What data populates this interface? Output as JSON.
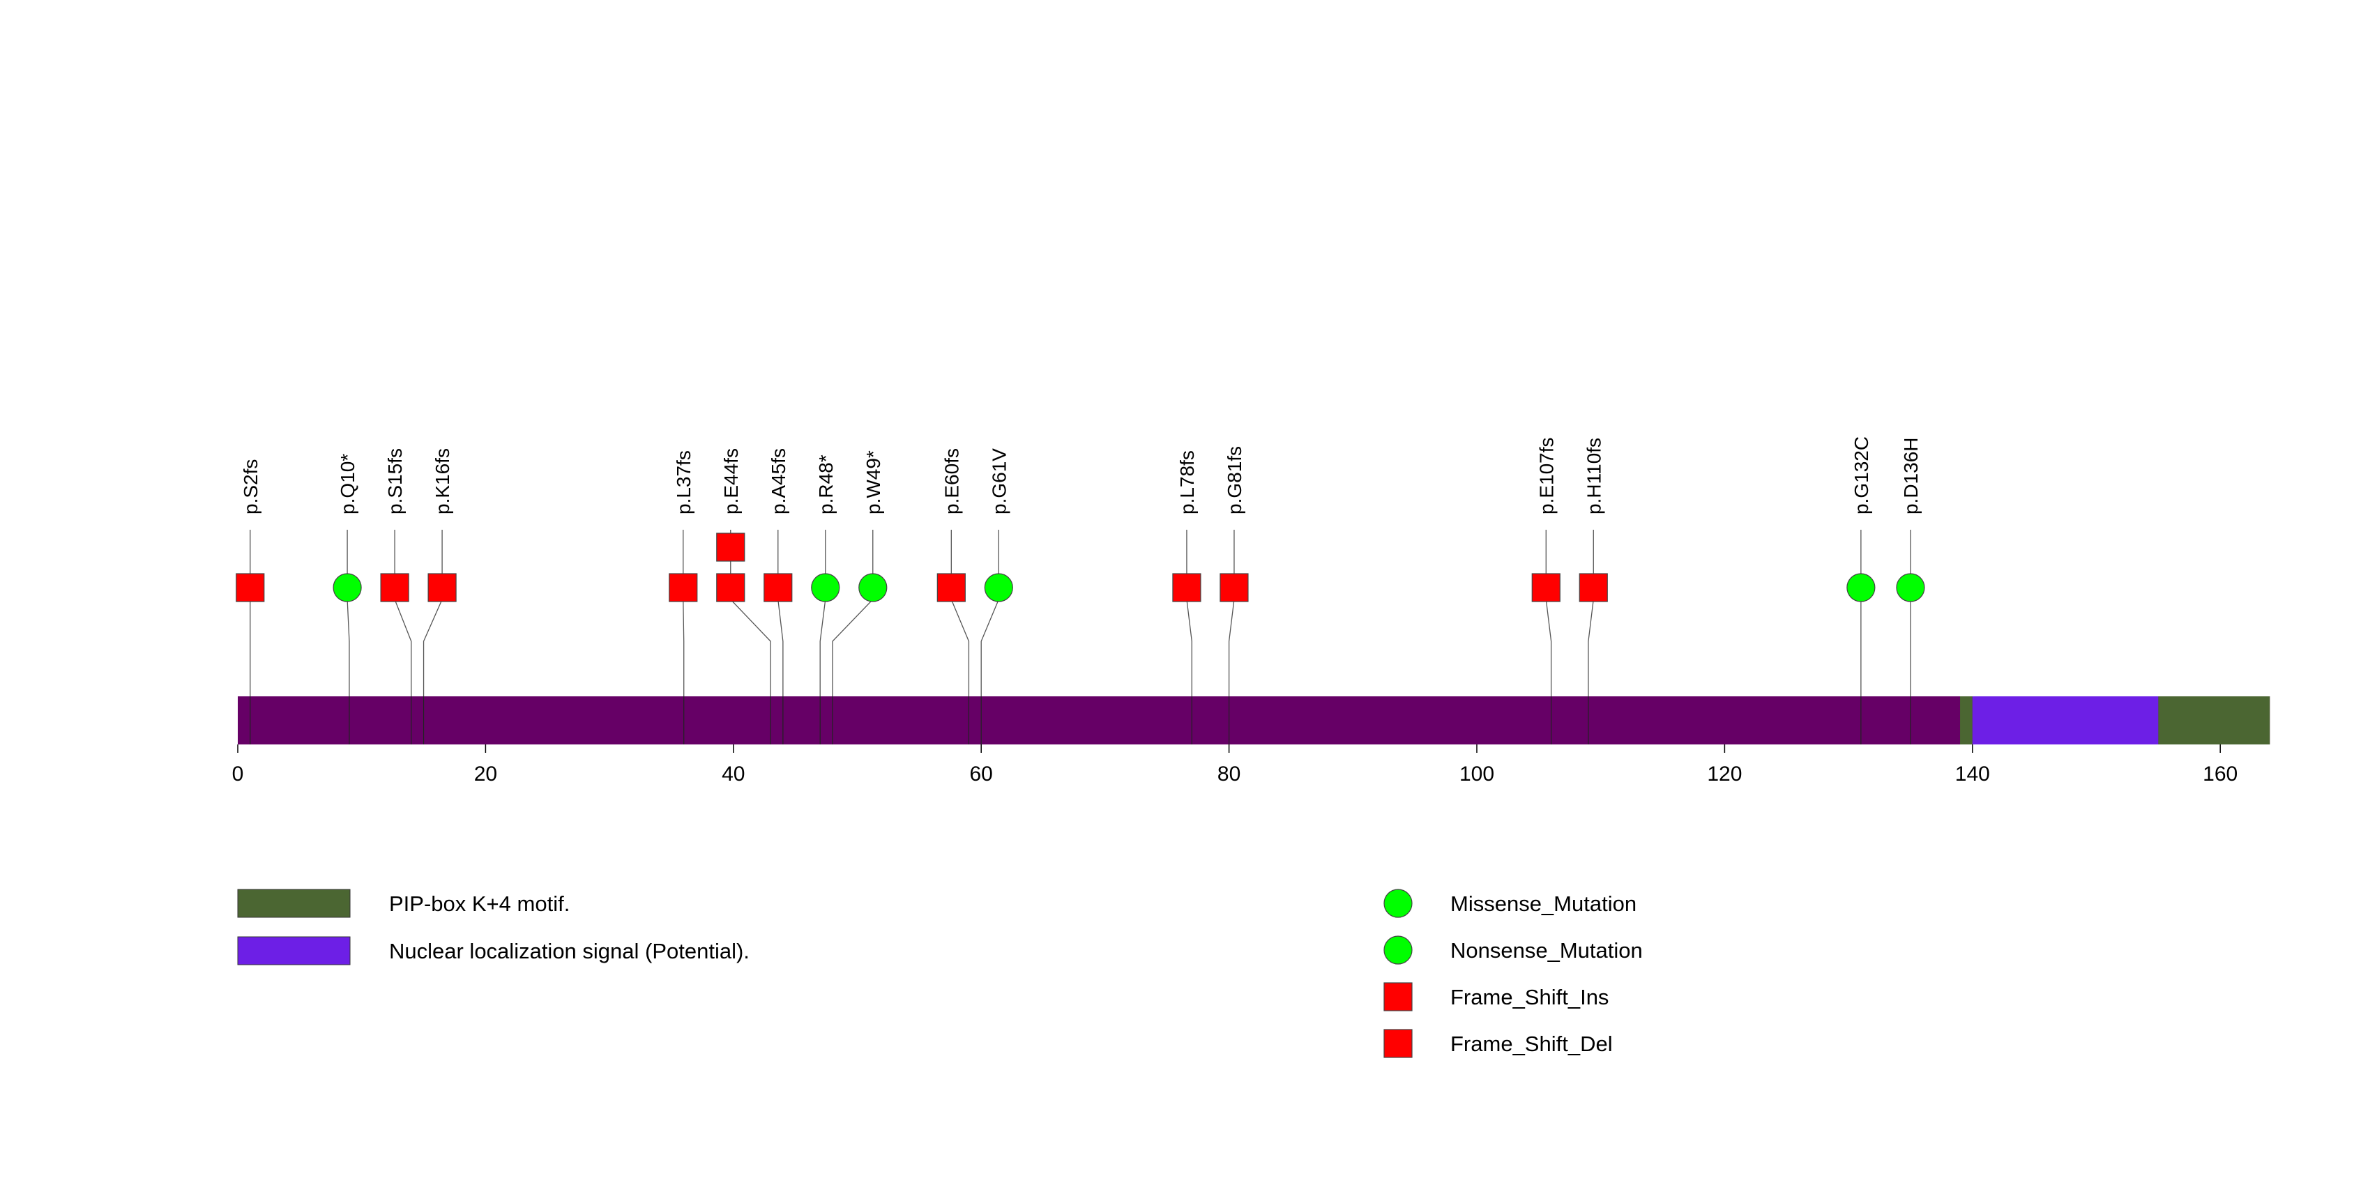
{
  "chart_data": {
    "type": "lollipop",
    "protein_length": 164,
    "x_axis": {
      "range": [
        0,
        164
      ],
      "ticks": [
        0,
        20,
        40,
        60,
        80,
        100,
        120,
        140,
        160
      ]
    },
    "backbone_color": "#660066",
    "domains": [
      {
        "name": "PIP-box K+4 motif.",
        "start": 139,
        "end": 140,
        "color": "#4b6632"
      },
      {
        "name": "Nuclear localization signal (Potential).",
        "start": 140,
        "end": 155,
        "color": "#6d1fe6"
      },
      {
        "name": "PIP-box K+4 motif.",
        "start": 155,
        "end": 164,
        "color": "#4b6632"
      }
    ],
    "mutations": [
      {
        "label": "p.S2fs",
        "position": 1,
        "type": "Frame_Shift_Del",
        "count": 1
      },
      {
        "label": "p.Q10*",
        "position": 9,
        "type": "Nonsense_Mutation",
        "count": 1
      },
      {
        "label": "p.S15fs",
        "position": 14,
        "type": "Frame_Shift_Del",
        "count": 1
      },
      {
        "label": "p.K16fs",
        "position": 15,
        "type": "Frame_Shift_Del",
        "count": 1
      },
      {
        "label": "p.L37fs",
        "position": 36,
        "type": "Frame_Shift_Del",
        "count": 1
      },
      {
        "label": "p.E44fs",
        "position": 43,
        "type": "Frame_Shift_Del",
        "count": 2
      },
      {
        "label": "p.A45fs",
        "position": 44,
        "type": "Frame_Shift_Del",
        "count": 1
      },
      {
        "label": "p.R48*",
        "position": 47,
        "type": "Nonsense_Mutation",
        "count": 1
      },
      {
        "label": "p.W49*",
        "position": 48,
        "type": "Nonsense_Mutation",
        "count": 1
      },
      {
        "label": "p.E60fs",
        "position": 59,
        "type": "Frame_Shift_Del",
        "count": 1
      },
      {
        "label": "p.G61V",
        "position": 60,
        "type": "Missense_Mutation",
        "count": 1
      },
      {
        "label": "p.L78fs",
        "position": 77,
        "type": "Frame_Shift_Del",
        "count": 1
      },
      {
        "label": "p.G81fs",
        "position": 80,
        "type": "Frame_Shift_Del",
        "count": 1
      },
      {
        "label": "p.E107fs",
        "position": 106,
        "type": "Frame_Shift_Del",
        "count": 1
      },
      {
        "label": "p.H110fs",
        "position": 109,
        "type": "Frame_Shift_Del",
        "count": 1
      },
      {
        "label": "p.G132C",
        "position": 131,
        "type": "Missense_Mutation",
        "count": 1
      },
      {
        "label": "p.D136H",
        "position": 135,
        "type": "Missense_Mutation",
        "count": 1
      }
    ],
    "domain_legend": [
      {
        "label": "PIP-box K+4 motif.",
        "color": "#4b6632"
      },
      {
        "label": "Nuclear localization signal (Potential).",
        "color": "#6d1fe6"
      }
    ],
    "mutation_legend": [
      {
        "label": "Missense_Mutation",
        "shape": "circle",
        "color": "#00ff00"
      },
      {
        "label": "Nonsense_Mutation",
        "shape": "circle",
        "color": "#00ff00"
      },
      {
        "label": "Frame_Shift_Ins",
        "shape": "square",
        "color": "#ff0000"
      },
      {
        "label": "Frame_Shift_Del",
        "shape": "square",
        "color": "#ff0000"
      }
    ]
  }
}
